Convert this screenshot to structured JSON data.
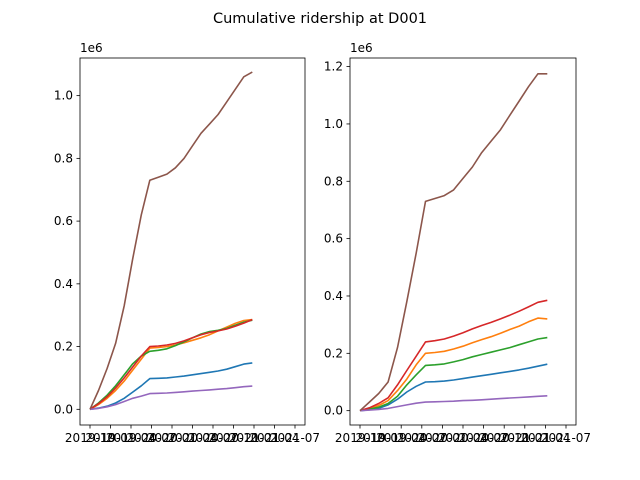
{
  "figure": {
    "title": "Cumulative ridership at D001"
  },
  "chart_data": [
    {
      "type": "line",
      "x": [
        "2019-10-01",
        "2019-11-01",
        "2019-12-01",
        "2020-01-01",
        "2020-02-01",
        "2020-03-01",
        "2020-04-01",
        "2020-05-01",
        "2020-06-01",
        "2020-07-01",
        "2020-08-01",
        "2020-09-01",
        "2020-10-01",
        "2020-11-01",
        "2020-12-01",
        "2021-01-01",
        "2021-02-01",
        "2021-03-01",
        "2021-04-01",
        "2021-05-01",
        "2021-06-01",
        "2021-07-01",
        "2021-08-01",
        "2021-09-01",
        "2021-10-01"
      ],
      "x_ticks": [
        "2019-10",
        "2019-01",
        "2019-04",
        "2020-07",
        "2020-01",
        "2020-04",
        "2020-07",
        "2020-10",
        "2021-01",
        "2021-04",
        "2021-07"
      ],
      "y_offset_label": "1e6",
      "y_ticks": [
        "0.0",
        "0.2",
        "0.4",
        "0.6",
        "0.8",
        "1.0"
      ],
      "ylim": [
        -0.05,
        1.12
      ],
      "scale": 1000000,
      "grid": false,
      "series": [
        {
          "color": "#1f77b4",
          "values": [
            0,
            0.004,
            0.01,
            0.02,
            0.035,
            0.055,
            0.075,
            0.098,
            0.099,
            0.1,
            0.103,
            0.106,
            0.11,
            0.114,
            0.118,
            0.122,
            0.128,
            0.136,
            0.144,
            0.148,
            null,
            null,
            null,
            null,
            null
          ]
        },
        {
          "color": "#ff7f0e",
          "values": [
            0,
            0.015,
            0.035,
            0.06,
            0.09,
            0.125,
            0.16,
            0.195,
            0.197,
            0.2,
            0.205,
            0.212,
            0.22,
            0.228,
            0.238,
            0.25,
            0.262,
            0.274,
            0.283,
            0.286,
            null,
            null,
            null,
            null,
            null
          ]
        },
        {
          "color": "#2ca02c",
          "values": [
            0,
            0.02,
            0.045,
            0.075,
            0.11,
            0.145,
            0.17,
            0.185,
            0.188,
            0.193,
            0.203,
            0.215,
            0.228,
            0.24,
            0.248,
            0.252,
            0.258,
            0.268,
            0.278,
            0.284,
            null,
            null,
            null,
            null,
            null
          ]
        },
        {
          "color": "#d62728",
          "values": [
            0,
            0.018,
            0.04,
            0.068,
            0.1,
            0.135,
            0.17,
            0.2,
            0.202,
            0.205,
            0.21,
            0.218,
            0.228,
            0.238,
            0.245,
            0.25,
            0.256,
            0.265,
            0.275,
            0.286,
            null,
            null,
            null,
            null,
            null
          ]
        },
        {
          "color": "#9467bd",
          "values": [
            0,
            0.003,
            0.008,
            0.015,
            0.025,
            0.035,
            0.042,
            0.05,
            0.051,
            0.052,
            0.054,
            0.056,
            0.058,
            0.06,
            0.062,
            0.064,
            0.066,
            0.069,
            0.072,
            0.074,
            null,
            null,
            null,
            null,
            null
          ]
        },
        {
          "color": "#8c564b",
          "values": [
            0,
            0.06,
            0.13,
            0.21,
            0.33,
            0.48,
            0.62,
            0.73,
            0.74,
            0.75,
            0.77,
            0.8,
            0.84,
            0.88,
            0.91,
            0.94,
            0.98,
            1.02,
            1.06,
            1.075,
            null,
            null,
            null,
            null,
            null
          ]
        }
      ]
    },
    {
      "type": "line",
      "x": [
        "2019-10-01",
        "2019-11-01",
        "2019-12-01",
        "2020-01-01",
        "2020-02-01",
        "2020-03-01",
        "2020-04-01",
        "2020-05-01",
        "2020-06-01",
        "2020-07-01",
        "2020-08-01",
        "2020-09-01",
        "2020-10-01",
        "2020-11-01",
        "2020-12-01",
        "2021-01-01",
        "2021-02-01",
        "2021-03-01",
        "2021-04-01",
        "2021-05-01",
        "2021-06-01",
        "2021-07-01",
        "2021-08-01"
      ],
      "x_ticks": [
        "2019-10",
        "2019-01",
        "2019-04",
        "2020-07",
        "2020-01",
        "2020-04",
        "2020-07",
        "2020-10",
        "2021-01",
        "2021-04",
        "2021-07"
      ],
      "y_offset_label": "1e6",
      "y_ticks": [
        "0.0",
        "0.2",
        "0.4",
        "0.6",
        "0.8",
        "1.0",
        "1.2"
      ],
      "ylim": [
        -0.05,
        1.23
      ],
      "scale": 1000000,
      "grid": false,
      "series": [
        {
          "color": "#1f77b4",
          "values": [
            0,
            0.003,
            0.008,
            0.02,
            0.04,
            0.065,
            0.085,
            0.1,
            0.101,
            0.103,
            0.107,
            0.112,
            0.117,
            0.122,
            0.127,
            0.132,
            0.137,
            0.142,
            0.148,
            0.155,
            0.162,
            null,
            null
          ]
        },
        {
          "color": "#ff7f0e",
          "values": [
            0,
            0.007,
            0.018,
            0.035,
            0.07,
            0.11,
            0.16,
            0.2,
            0.203,
            0.207,
            0.215,
            0.225,
            0.237,
            0.248,
            0.258,
            0.27,
            0.283,
            0.295,
            0.31,
            0.323,
            0.32,
            null,
            null
          ]
        },
        {
          "color": "#2ca02c",
          "values": [
            0,
            0.005,
            0.012,
            0.025,
            0.05,
            0.09,
            0.125,
            0.158,
            0.16,
            0.163,
            0.17,
            0.178,
            0.188,
            0.196,
            0.204,
            0.212,
            0.22,
            0.23,
            0.24,
            0.25,
            0.255,
            null,
            null
          ]
        },
        {
          "color": "#d62728",
          "values": [
            0,
            0.01,
            0.025,
            0.045,
            0.09,
            0.14,
            0.19,
            0.24,
            0.244,
            0.25,
            0.26,
            0.272,
            0.285,
            0.297,
            0.308,
            0.32,
            0.333,
            0.347,
            0.362,
            0.378,
            0.385,
            null,
            null
          ]
        },
        {
          "color": "#9467bd",
          "values": [
            0,
            0.002,
            0.004,
            0.008,
            0.014,
            0.02,
            0.026,
            0.03,
            0.031,
            0.032,
            0.033,
            0.035,
            0.036,
            0.038,
            0.04,
            0.042,
            0.044,
            0.046,
            0.048,
            0.05,
            0.052,
            null,
            null
          ]
        },
        {
          "color": "#8c564b",
          "values": [
            0,
            0.03,
            0.06,
            0.1,
            0.22,
            0.38,
            0.55,
            0.73,
            0.74,
            0.75,
            0.77,
            0.81,
            0.85,
            0.9,
            0.94,
            0.98,
            1.03,
            1.08,
            1.13,
            1.175,
            1.175,
            null,
            null
          ]
        }
      ]
    }
  ]
}
